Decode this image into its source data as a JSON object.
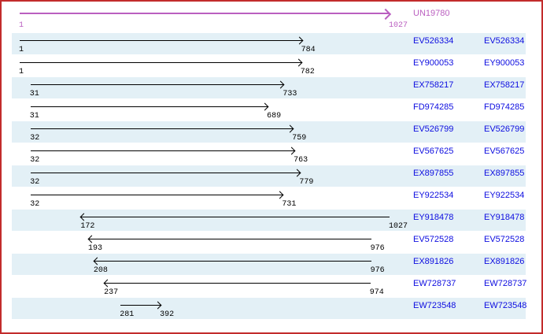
{
  "reference": {
    "id": "UN19780",
    "start": 1,
    "end": 1027,
    "strand": "+"
  },
  "alignments": [
    {
      "id": "EV526334",
      "start": 1,
      "end": 784,
      "strand": "+"
    },
    {
      "id": "EY900053",
      "start": 1,
      "end": 782,
      "strand": "+"
    },
    {
      "id": "EX758217",
      "start": 31,
      "end": 733,
      "strand": "+"
    },
    {
      "id": "FD974285",
      "start": 31,
      "end": 689,
      "strand": "+"
    },
    {
      "id": "EV526799",
      "start": 32,
      "end": 759,
      "strand": "+"
    },
    {
      "id": "EV567625",
      "start": 32,
      "end": 763,
      "strand": "+"
    },
    {
      "id": "EX897855",
      "start": 32,
      "end": 779,
      "strand": "+"
    },
    {
      "id": "EY922534",
      "start": 32,
      "end": 731,
      "strand": "+"
    },
    {
      "id": "EY918478",
      "start": 172,
      "end": 1027,
      "strand": "-"
    },
    {
      "id": "EV572528",
      "start": 193,
      "end": 976,
      "strand": "-"
    },
    {
      "id": "EX891826",
      "start": 208,
      "end": 976,
      "strand": "-"
    },
    {
      "id": "EW728737",
      "start": 237,
      "end": 974,
      "strand": "-"
    },
    {
      "id": "EW723548",
      "start": 281,
      "end": 392,
      "strand": "+"
    }
  ],
  "colors": {
    "frame_border": "#c22b2b",
    "reference": "#ba5fc0",
    "sequence_link": "#0d0de0",
    "row_stripe": "#e3f0f6",
    "arrow": "#000000",
    "background": "#ffffff"
  }
}
